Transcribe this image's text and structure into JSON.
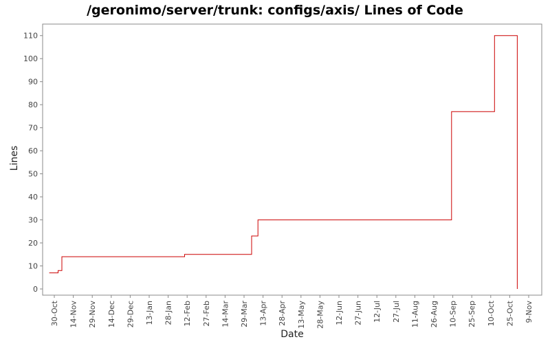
{
  "chart_data": {
    "type": "line",
    "step": true,
    "title": "/geronimo/server/trunk: configs/axis/ Lines of Code",
    "xlabel": "Date",
    "ylabel": "Lines",
    "ylim": [
      0,
      115
    ],
    "yticks": [
      "0",
      "10",
      "20",
      "30",
      "40",
      "50",
      "60",
      "70",
      "80",
      "90",
      "100",
      "110"
    ],
    "xticks": [
      "30-Oct",
      "14-Nov",
      "29-Nov",
      "14-Dec",
      "29-Dec",
      "13-Jan",
      "28-Jan",
      "12-Feb",
      "27-Feb",
      "14-Mar",
      "29-Mar",
      "13-Apr",
      "28-Apr",
      "13-May",
      "28-May",
      "12-Jun",
      "27-Jun",
      "12-Jul",
      "27-Jul",
      "11-Aug",
      "26-Aug",
      "10-Sep",
      "25-Sep",
      "10-Oct",
      "25-Oct",
      "9-Nov"
    ],
    "grid": false,
    "series": [
      {
        "color": "#cc0000",
        "x": [
          "Oct 26",
          "Nov 2",
          "Nov 5",
          "Feb 10",
          "Apr 4",
          "Apr 9",
          "Sep 9",
          "Oct 13",
          "Oct 31"
        ],
        "values": [
          7,
          8,
          14,
          15,
          23,
          30,
          77,
          110,
          0
        ]
      }
    ]
  }
}
